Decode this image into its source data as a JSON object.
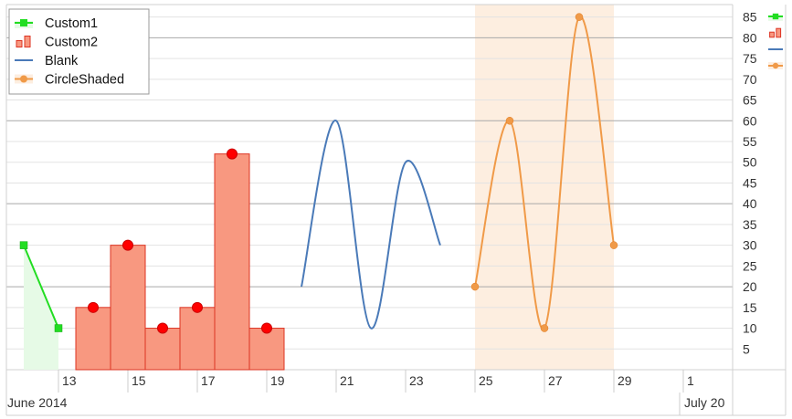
{
  "chart_data": {
    "type": "line",
    "title": "",
    "xlabel": "",
    "ylabel": "",
    "x_axis": {
      "type": "date",
      "range": [
        "2014-06-12",
        "2014-07-02"
      ],
      "tick_labels": [
        "13",
        "15",
        "17",
        "19",
        "21",
        "23",
        "25",
        "27",
        "29",
        "1"
      ],
      "tick_dates": [
        "2014-06-13",
        "2014-06-15",
        "2014-06-17",
        "2014-06-19",
        "2014-06-21",
        "2014-06-23",
        "2014-06-25",
        "2014-06-27",
        "2014-06-29",
        "2014-07-01"
      ],
      "month_labels": [
        {
          "label": "June 2014",
          "date": "2014-06-12"
        },
        {
          "label": "July 20",
          "date": "2014-07-01"
        }
      ]
    },
    "y_axis": {
      "side": "right",
      "range": [
        0,
        88
      ],
      "tick_labels": [
        "5",
        "10",
        "15",
        "20",
        "25",
        "30",
        "35",
        "40",
        "45",
        "50",
        "55",
        "60",
        "65",
        "70",
        "75",
        "80",
        "85"
      ],
      "tick_values": [
        5,
        10,
        15,
        20,
        25,
        30,
        35,
        40,
        45,
        50,
        55,
        60,
        65,
        70,
        75,
        80,
        85
      ],
      "major_values": [
        20,
        40,
        60,
        80
      ]
    },
    "grid": true,
    "legend_position": "top-left",
    "series": [
      {
        "name": "Custom1",
        "style": "area-line",
        "color": "#22dd22",
        "fill": "#e6fae6",
        "marker": "square",
        "points": [
          [
            "2014-06-12",
            30
          ],
          [
            "2014-06-13",
            10
          ]
        ]
      },
      {
        "name": "Custom2",
        "style": "bar",
        "color": "#dd3322",
        "fill": "#f89880",
        "marker": "circle",
        "marker_color": "#ff0000",
        "points": [
          [
            "2014-06-14",
            15
          ],
          [
            "2014-06-15",
            30
          ],
          [
            "2014-06-16",
            10
          ],
          [
            "2014-06-17",
            15
          ],
          [
            "2014-06-18",
            52
          ],
          [
            "2014-06-19",
            10
          ]
        ]
      },
      {
        "name": "Blank",
        "style": "spline",
        "color": "#4a7ab8",
        "points": [
          [
            "2014-06-20",
            20
          ],
          [
            "2014-06-21",
            60
          ],
          [
            "2014-06-22",
            10
          ],
          [
            "2014-06-23",
            50
          ],
          [
            "2014-06-24",
            30
          ]
        ]
      },
      {
        "name": "CircleShaded",
        "style": "spline",
        "color": "#f09a48",
        "marker": "circle",
        "shade": "#fdeee0",
        "points": [
          [
            "2014-06-25",
            20
          ],
          [
            "2014-06-26",
            60
          ],
          [
            "2014-06-27",
            10
          ],
          [
            "2014-06-28",
            85
          ],
          [
            "2014-06-29",
            30
          ]
        ]
      }
    ]
  }
}
